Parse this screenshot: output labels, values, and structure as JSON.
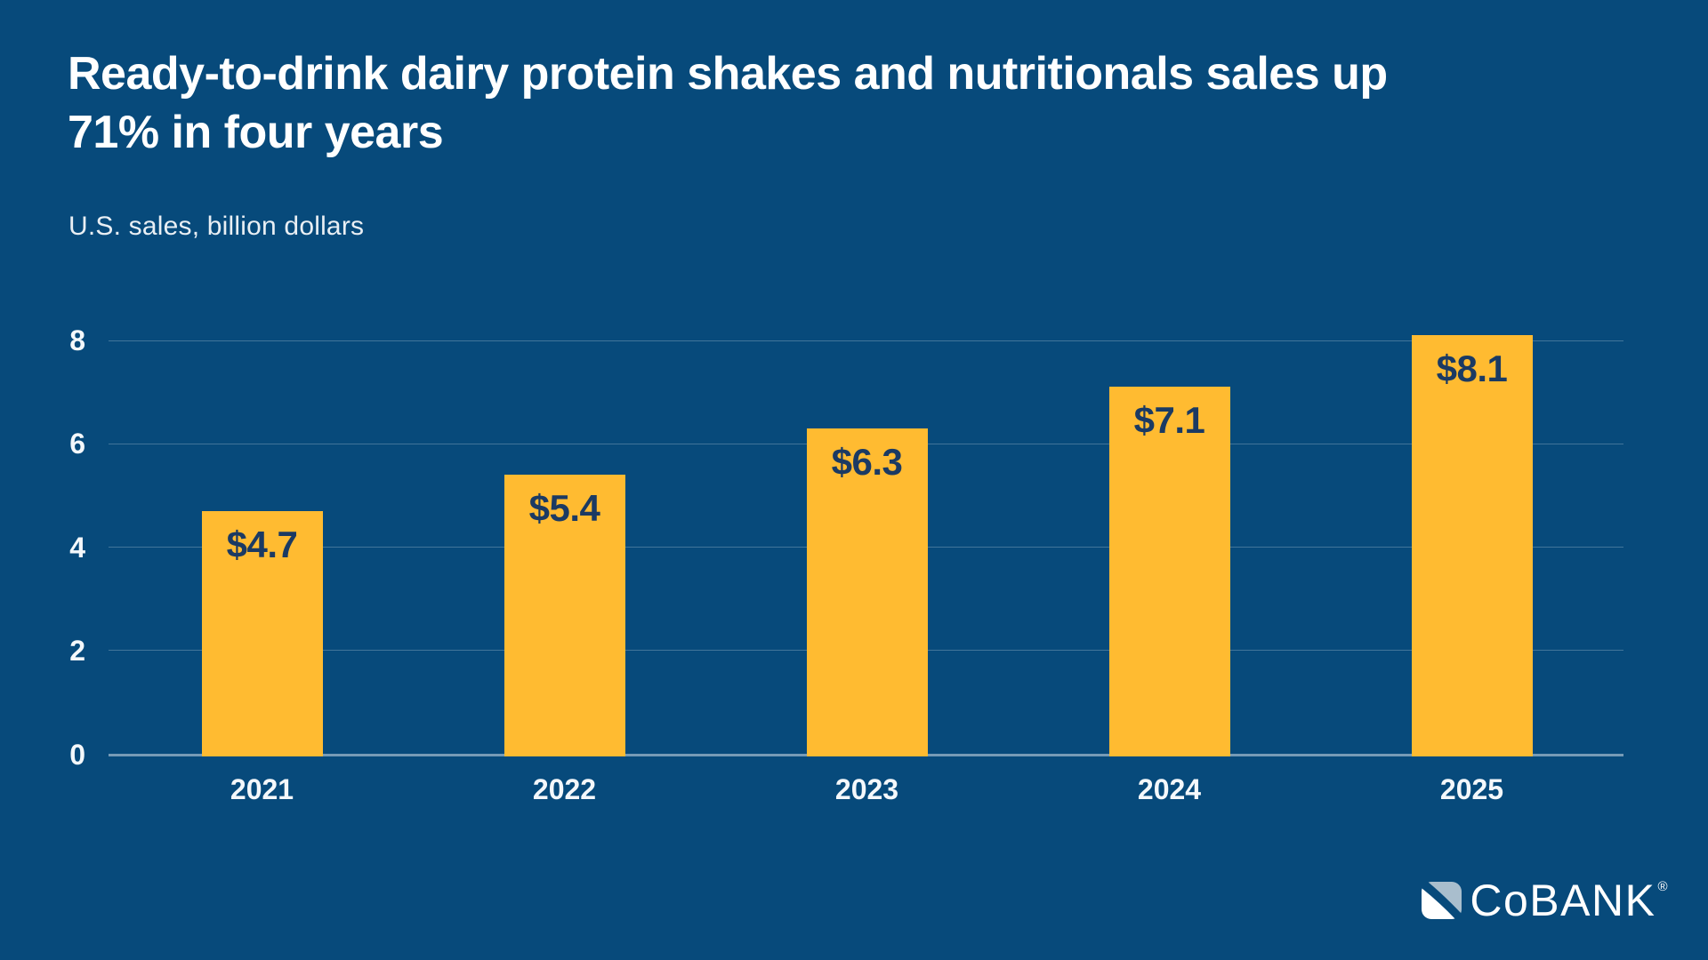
{
  "title": {
    "full": "Ready-to-drink dairy protein shakes and nutritionals sales up 71% in four years",
    "line1": "Ready-to-drink dairy protein shakes and nutritionals sales up",
    "line2": "71% in four years"
  },
  "subtitle": "U.S. sales, billion dollars",
  "chart_data": {
    "type": "bar",
    "title": "Ready-to-drink dairy protein shakes and nutritionals sales up 71% in four years",
    "ylabel": "U.S. sales, billion dollars",
    "xlabel": "",
    "categories": [
      "2021",
      "2022",
      "2023",
      "2024",
      "2025"
    ],
    "values": [
      4.7,
      5.4,
      6.3,
      7.1,
      8.1
    ],
    "bar_labels": [
      "$4.7",
      "$5.4",
      "$6.3",
      "$7.1",
      "$8.1"
    ],
    "yticks": [
      0,
      2,
      4,
      6,
      8
    ],
    "ylim": [
      0,
      8.4
    ],
    "grid": "horizontal",
    "legend": "none"
  },
  "colors": {
    "background": "#074A7B",
    "bar": "#FFBB31",
    "bar_label": "#1B3A63",
    "text": "#FFFFFF",
    "gridline_rgba": "rgba(255,255,255,0.24)",
    "axisline_rgba": "rgba(255,255,255,0.45)",
    "logo_icon_light": "#A9BECD",
    "logo_icon_white": "#FFFFFF"
  },
  "logo": {
    "wordmark": "CoBANK",
    "registered_mark": "®",
    "icon": "cobank-diagonal-split-square-icon"
  }
}
